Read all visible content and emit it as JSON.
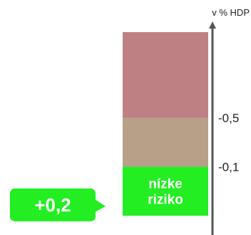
{
  "chart_data": {
    "type": "bar",
    "unit_label": "v % HDP",
    "ticks": [
      {
        "value": -0.5,
        "label": "-0,5"
      },
      {
        "value": -0.1,
        "label": "-0,1"
      }
    ],
    "bands": [
      {
        "from": -0.1,
        "to": 0.3,
        "color": "#22ee22",
        "label_lines": [
          "nízke",
          "riziko"
        ]
      },
      {
        "from": -0.5,
        "to": -0.1,
        "color": "#b89f88",
        "label_lines": []
      },
      {
        "from": -1.2,
        "to": -0.5,
        "color": "#bf8083",
        "label_lines": []
      }
    ],
    "marker": {
      "value": 0.2,
      "label": "+0,2",
      "color": "#22ee22"
    },
    "axis_color": "#555555"
  }
}
